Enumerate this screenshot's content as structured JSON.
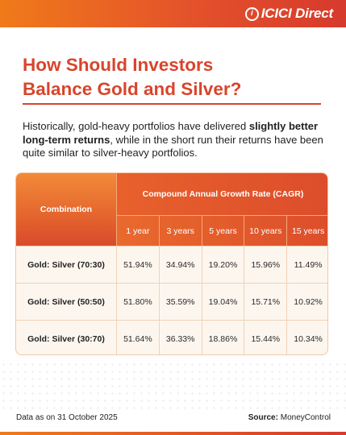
{
  "brand": {
    "mark": "i",
    "name": "ICICI Direct",
    "accent": "#d8452b"
  },
  "title": {
    "line1": "How Should Investors",
    "line2": "Balance Gold and Silver?"
  },
  "intro": {
    "part1": "Historically, gold-heavy portfolios have delivered ",
    "bold": "slightly better long-term returns",
    "part2": ", while in the short run their returns have been quite similar to silver-heavy portfolios."
  },
  "table": {
    "col_combination": "Combination",
    "col_group": "Compound Annual Growth Rate (CAGR)",
    "periods": [
      "1 year",
      "3 years",
      "5 years",
      "10 years",
      "15 years"
    ],
    "rows": [
      {
        "name": "Gold: Silver (70:30)",
        "values": [
          "51.94%",
          "34.94%",
          "19.20%",
          "15.96%",
          "11.49%"
        ]
      },
      {
        "name": "Gold: Silver (50:50)",
        "values": [
          "51.80%",
          "35.59%",
          "19.04%",
          "15.71%",
          "10.92%"
        ]
      },
      {
        "name": "Gold: Silver (30:70)",
        "values": [
          "51.64%",
          "36.33%",
          "18.86%",
          "15.44%",
          "10.34%"
        ]
      }
    ]
  },
  "footer": {
    "data_note": "Data as on 31 October 2025",
    "source_label": "Source:",
    "source_value": "MoneyControl"
  }
}
